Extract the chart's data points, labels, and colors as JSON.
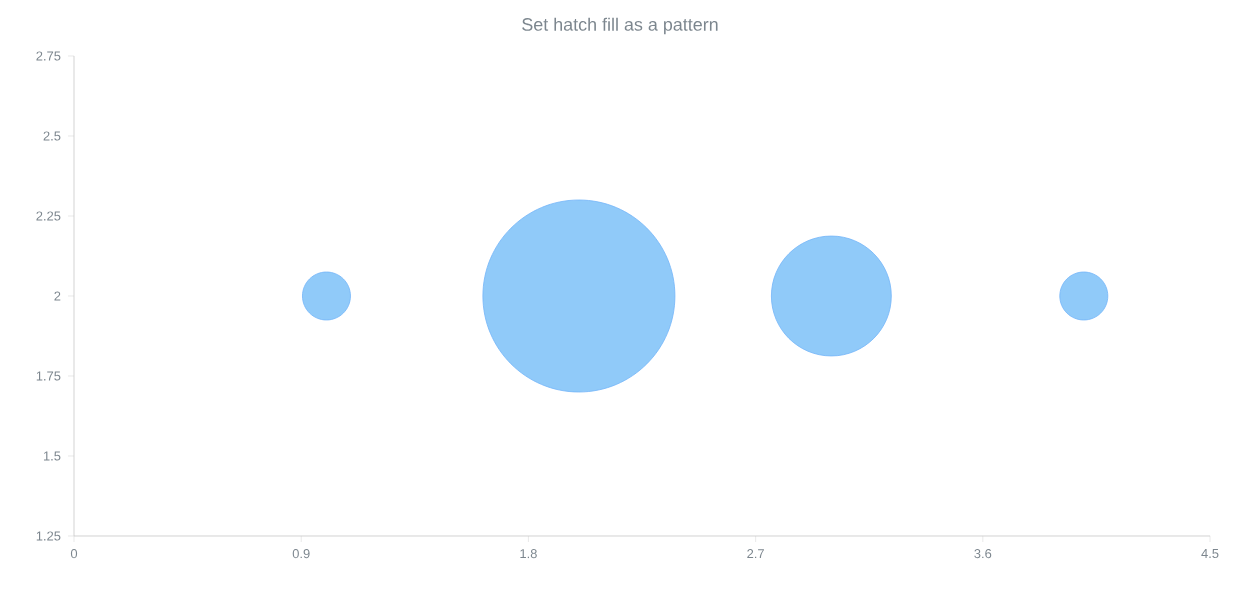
{
  "chart_data": {
    "type": "bubble",
    "title": "Set hatch fill as a pattern",
    "x": [
      1,
      2,
      3,
      4
    ],
    "series": [
      {
        "color": "#90caf9",
        "values": [
          2,
          2,
          2,
          2
        ],
        "sizes": [
          0.0625,
          1,
          0.39,
          0.0625
        ]
      }
    ],
    "xlim": [
      0,
      4.5
    ],
    "ylim": [
      1.25,
      2.75
    ],
    "xticks": [
      0,
      0.9,
      1.8,
      2.7,
      3.6,
      4.5
    ],
    "yticks": [
      1.25,
      1.5,
      1.75,
      2,
      2.25,
      2.5,
      2.75
    ]
  }
}
